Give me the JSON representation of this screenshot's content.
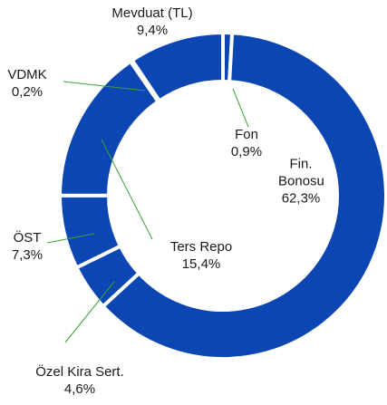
{
  "chart_data": {
    "type": "donut",
    "categories": [
      "Fon",
      "Fin. Bonosu",
      "Özel Kira Sert.",
      "ÖST",
      "Ters Repo",
      "VDMK",
      "Mevduat (TL)"
    ],
    "values": [
      0.9,
      62.3,
      4.6,
      7.3,
      15.4,
      0.2,
      9.4
    ],
    "value_labels": [
      "0,9%",
      "62,3%",
      "4,6%",
      "7,3%",
      "15,4%",
      "0,2%",
      "9,4%"
    ],
    "color": "#0b46b3"
  }
}
